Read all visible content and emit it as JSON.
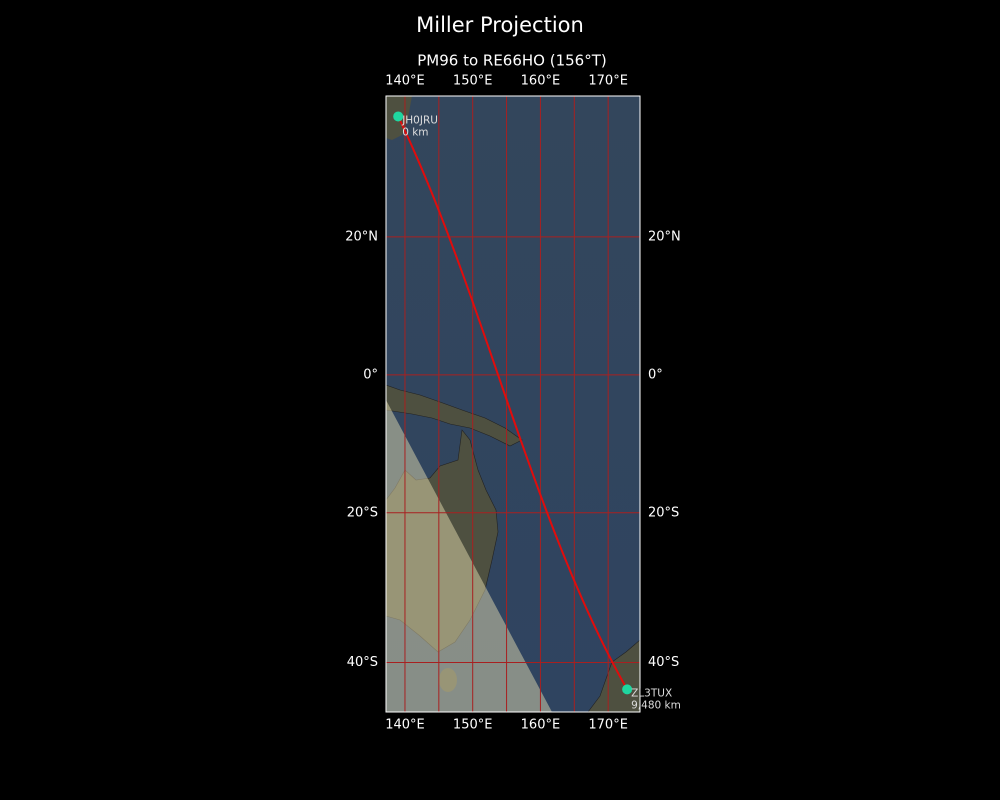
{
  "chart_data": {
    "type": "map",
    "projection": "miller",
    "title": "Miller Projection",
    "subtitle": "PM96 to RE66HO (156°T)",
    "xlim": [
      137.2,
      174.7
    ],
    "ylim": [
      -46.0,
      38.9
    ],
    "xticks": [
      {
        "value": 140,
        "label": "140°E"
      },
      {
        "value": 150,
        "label": "150°E"
      },
      {
        "value": 160,
        "label": "160°E"
      },
      {
        "value": 170,
        "label": "170°E"
      }
    ],
    "xgrid": [
      140,
      145,
      150,
      155,
      160,
      165,
      170
    ],
    "yticks": [
      {
        "value": 20,
        "label": "20°N"
      },
      {
        "value": 0,
        "label": "0°"
      },
      {
        "value": -20,
        "label": "20°S"
      },
      {
        "value": -40,
        "label": "40°S"
      }
    ],
    "grid": true,
    "grid_color": "#a82020",
    "route_color": "#e00c0c",
    "point_color": "#1fd6a0",
    "points": [
      {
        "name": "JH0JRU",
        "lon": 139.0,
        "lat": 36.3,
        "label": "0 km"
      },
      {
        "name": "ZL3TUX",
        "lon": 172.8,
        "lat": -43.3,
        "label": "9,480 km"
      }
    ]
  }
}
